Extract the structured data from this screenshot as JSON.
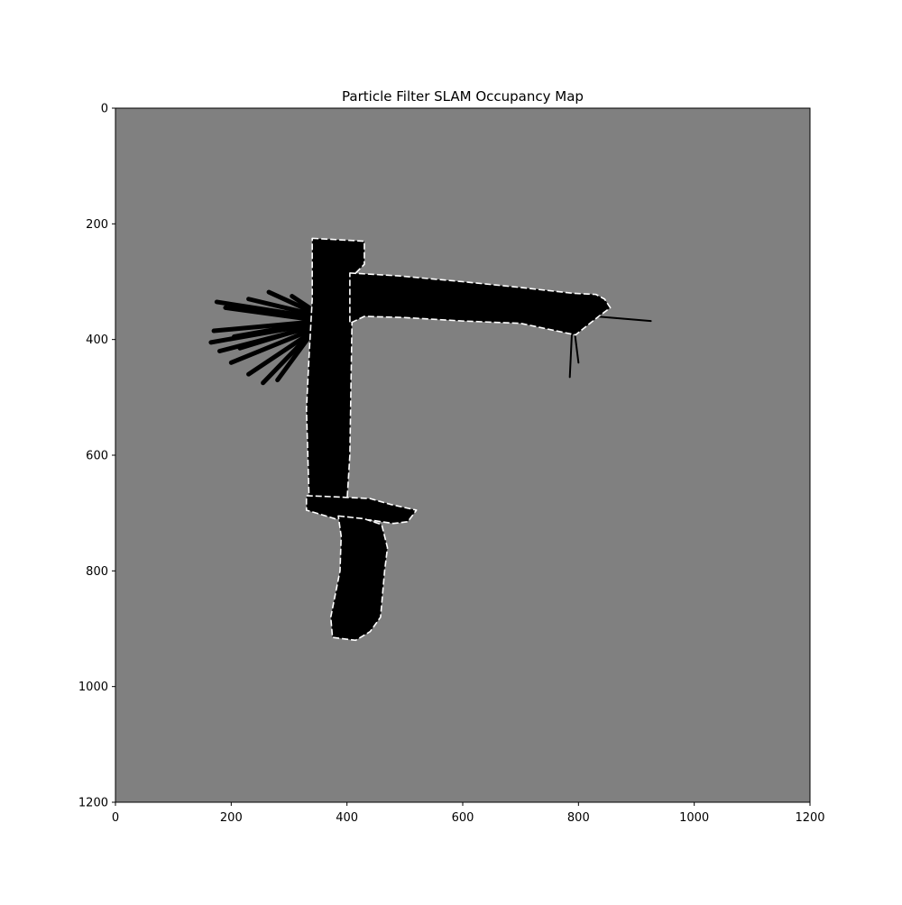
{
  "chart_data": {
    "type": "heatmap",
    "title": "Particle Filter SLAM Occupancy Map",
    "xlabel": "",
    "ylabel": "",
    "xlim": [
      0,
      1200
    ],
    "ylim": [
      1200,
      0
    ],
    "x_ticks": [
      0,
      200,
      400,
      600,
      800,
      1000,
      1200
    ],
    "y_ticks": [
      0,
      200,
      400,
      600,
      800,
      1000,
      1200
    ],
    "grid": false,
    "colormap": "gray",
    "unknown_color": "#808080",
    "free_color": "#000000",
    "occupied_color": "#ffffff",
    "mapped_regions": [
      {
        "name": "left-corridor",
        "polygon": [
          [
            340,
            225
          ],
          [
            430,
            230
          ],
          [
            430,
            270
          ],
          [
            410,
            290
          ],
          [
            405,
            600
          ],
          [
            400,
            680
          ],
          [
            335,
            690
          ],
          [
            330,
            520
          ],
          [
            335,
            420
          ],
          [
            340,
            330
          ]
        ]
      },
      {
        "name": "horizontal-corridor",
        "polygon": [
          [
            405,
            285
          ],
          [
            490,
            290
          ],
          [
            600,
            300
          ],
          [
            700,
            310
          ],
          [
            790,
            320
          ],
          [
            830,
            322
          ],
          [
            845,
            330
          ],
          [
            855,
            345
          ],
          [
            835,
            360
          ],
          [
            795,
            392
          ],
          [
            700,
            372
          ],
          [
            600,
            368
          ],
          [
            500,
            362
          ],
          [
            430,
            360
          ],
          [
            405,
            372
          ]
        ]
      },
      {
        "name": "junction-room",
        "polygon": [
          [
            330,
            670
          ],
          [
            380,
            672
          ],
          [
            440,
            675
          ],
          [
            475,
            685
          ],
          [
            520,
            695
          ],
          [
            505,
            715
          ],
          [
            480,
            718
          ],
          [
            440,
            712
          ],
          [
            380,
            710
          ],
          [
            330,
            695
          ]
        ]
      },
      {
        "name": "lower-corridor",
        "polygon": [
          [
            385,
            705
          ],
          [
            430,
            710
          ],
          [
            460,
            720
          ],
          [
            470,
            760
          ],
          [
            465,
            800
          ],
          [
            458,
            880
          ],
          [
            440,
            905
          ],
          [
            415,
            920
          ],
          [
            375,
            915
          ],
          [
            372,
            880
          ],
          [
            388,
            800
          ],
          [
            390,
            740
          ]
        ]
      }
    ],
    "free_rays": [
      {
        "from": [
          335,
          360
        ],
        "to": [
          175,
          335
        ]
      },
      {
        "from": [
          335,
          365
        ],
        "to": [
          190,
          345
        ]
      },
      {
        "from": [
          335,
          370
        ],
        "to": [
          170,
          385
        ]
      },
      {
        "from": [
          335,
          375
        ],
        "to": [
          165,
          405
        ]
      },
      {
        "from": [
          335,
          380
        ],
        "to": [
          180,
          420
        ]
      },
      {
        "from": [
          335,
          385
        ],
        "to": [
          200,
          440
        ]
      },
      {
        "from": [
          335,
          390
        ],
        "to": [
          230,
          460
        ]
      },
      {
        "from": [
          335,
          392
        ],
        "to": [
          255,
          475
        ]
      },
      {
        "from": [
          335,
          395
        ],
        "to": [
          280,
          470
        ]
      },
      {
        "from": [
          335,
          355
        ],
        "to": [
          230,
          330
        ]
      },
      {
        "from": [
          335,
          350
        ],
        "to": [
          265,
          318
        ]
      },
      {
        "from": [
          335,
          345
        ],
        "to": [
          305,
          325
        ]
      },
      {
        "from": [
          335,
          372
        ],
        "to": [
          205,
          395
        ]
      },
      {
        "from": [
          335,
          378
        ],
        "to": [
          215,
          415
        ]
      },
      {
        "from": [
          830,
          360
        ],
        "to": [
          925,
          368
        ]
      },
      {
        "from": [
          790,
          360
        ],
        "to": [
          785,
          465
        ]
      },
      {
        "from": [
          790,
          360
        ],
        "to": [
          800,
          440
        ]
      }
    ]
  }
}
